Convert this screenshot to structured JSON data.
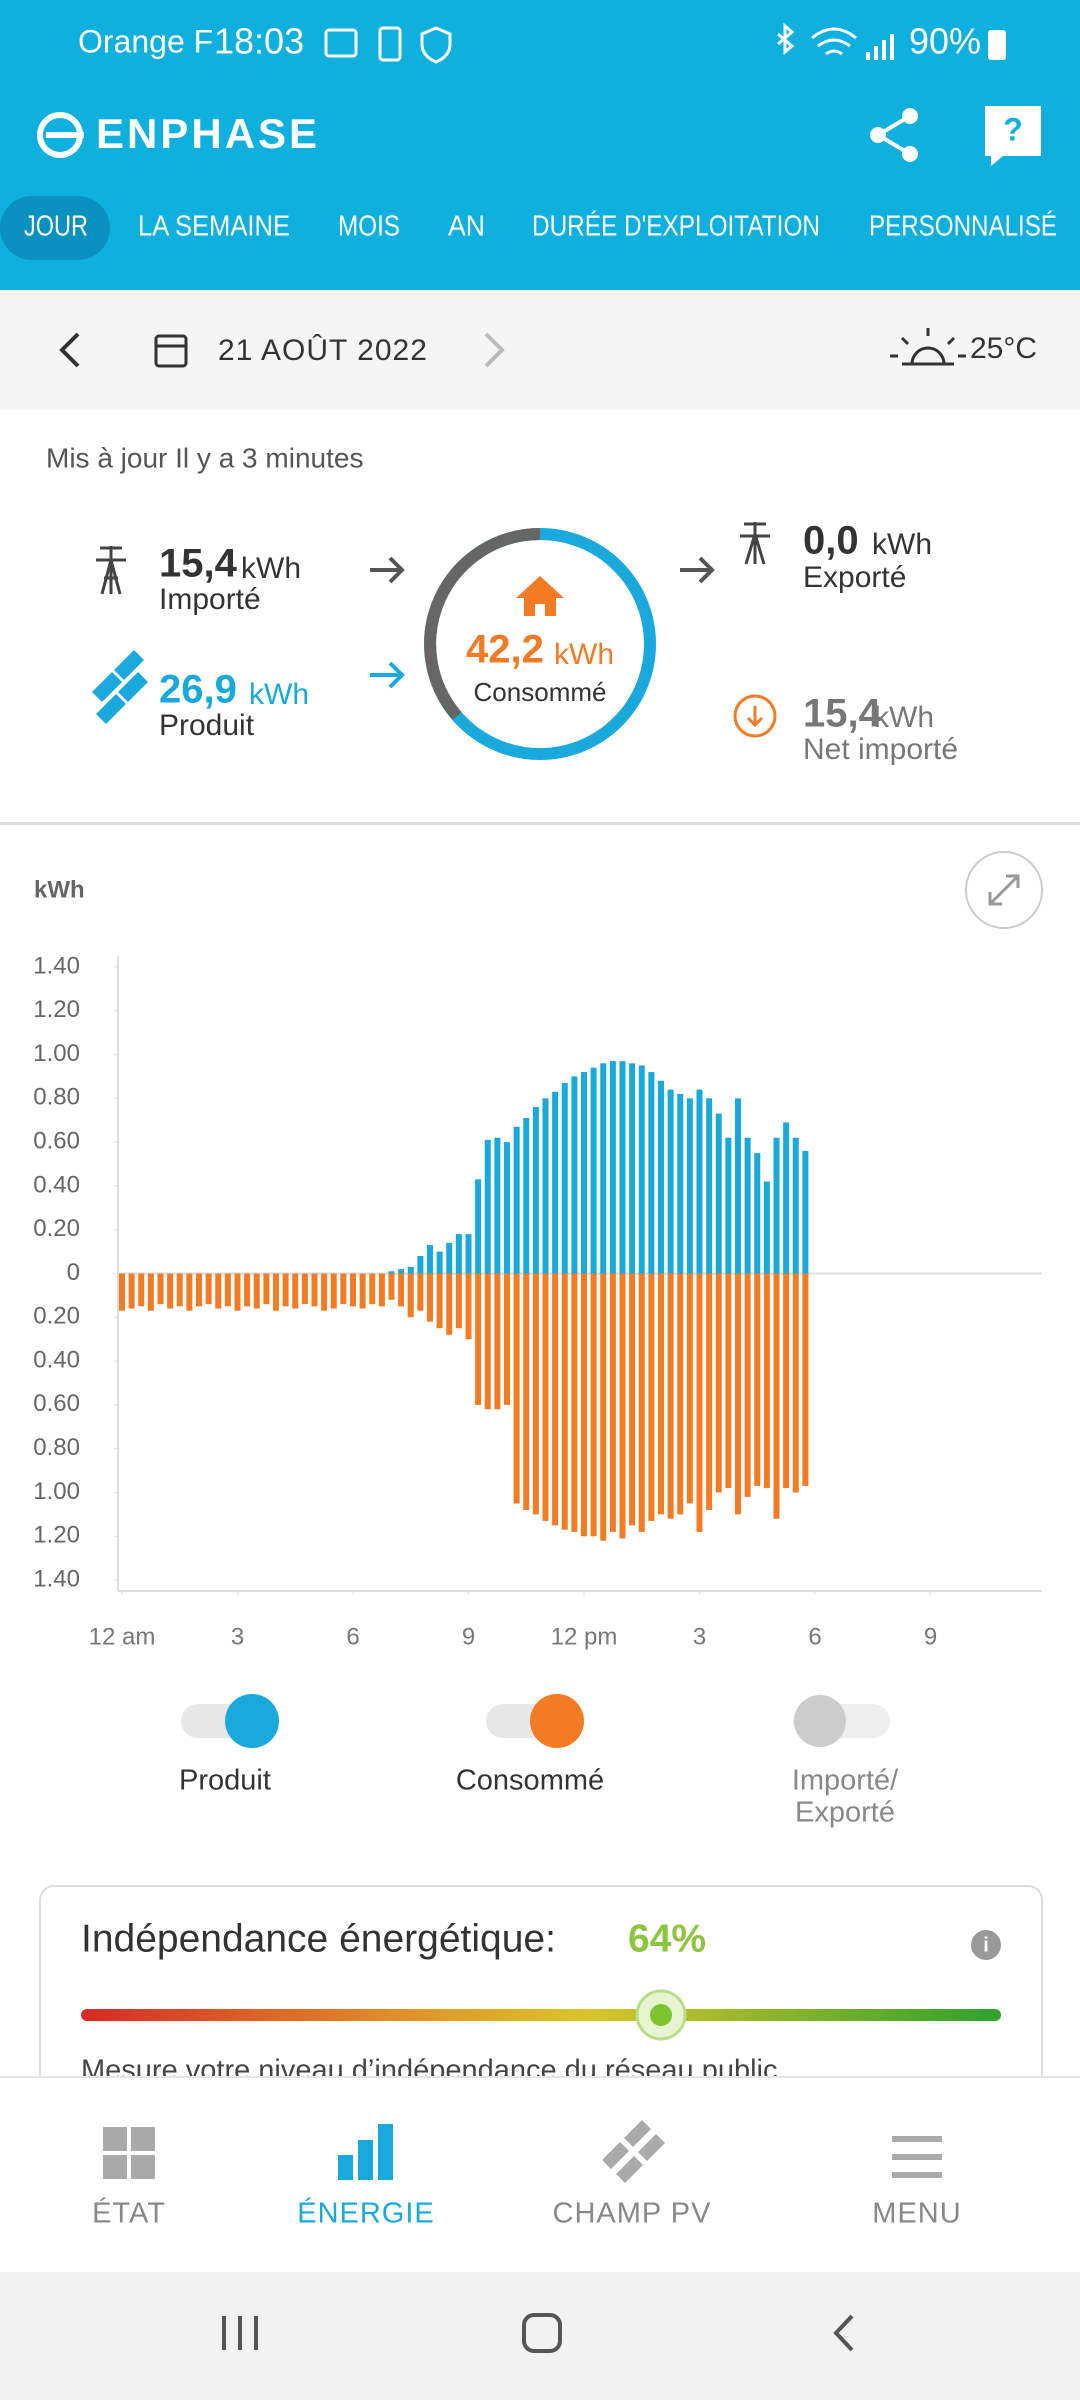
{
  "status_bar": {
    "carrier": "Orange F",
    "time": "18:03",
    "battery": "90%"
  },
  "header": {
    "brand": "ENPHASE"
  },
  "tabs": [
    "JOUR",
    "LA SEMAINE",
    "MOIS",
    "AN",
    "DURÉE D'EXPLOITATION",
    "PERSONNALISÉ"
  ],
  "date_bar": {
    "date": "21 AOÛT 2022",
    "temperature": "25°C"
  },
  "summary": {
    "updated": "Mis à jour Il y a 3 minutes",
    "imported": {
      "value": "15,4",
      "unit": "kWh",
      "label": "Importé"
    },
    "produced": {
      "value": "26,9",
      "unit": "kWh",
      "label": "Produit"
    },
    "consumed": {
      "value": "42,2",
      "unit": "kWh",
      "label": "Consommé"
    },
    "exported": {
      "value": "0,0",
      "unit": "kWh",
      "label": "Exporté"
    },
    "net_imported": {
      "value": "15,4",
      "unit": "kWh",
      "label": "Net importé"
    }
  },
  "chart_data": {
    "type": "bar",
    "y_label": "kWh",
    "x": [
      0,
      0.25,
      0.5,
      0.75,
      1,
      1.25,
      1.5,
      1.75,
      2,
      2.25,
      2.5,
      2.75,
      3,
      3.25,
      3.5,
      3.75,
      4,
      4.25,
      4.5,
      4.75,
      5,
      5.25,
      5.5,
      5.75,
      6,
      6.25,
      6.5,
      6.75,
      7,
      7.25,
      7.5,
      7.75,
      8,
      8.25,
      8.5,
      8.75,
      9,
      9.25,
      9.5,
      9.75,
      10,
      10.25,
      10.5,
      10.75,
      11,
      11.25,
      11.5,
      11.75,
      12,
      12.25,
      12.5,
      12.75,
      13,
      13.25,
      13.5,
      13.75,
      14,
      14.25,
      14.5,
      14.75,
      15,
      15.25,
      15.5,
      15.75,
      16,
      16.25,
      16.5,
      16.75,
      17,
      17.25,
      17.5,
      17.75
    ],
    "series": [
      {
        "name": "Produit",
        "color": "#19a9dc",
        "values": [
          0,
          0,
          0,
          0,
          0,
          0,
          0,
          0,
          0,
          0,
          0,
          0,
          0,
          0,
          0,
          0,
          0,
          0,
          0,
          0,
          0,
          0,
          0,
          0,
          0,
          0,
          0,
          0,
          0.01,
          0.02,
          0.03,
          0.08,
          0.13,
          0.1,
          0.14,
          0.18,
          0.18,
          0.43,
          0.61,
          0.62,
          0.6,
          0.67,
          0.71,
          0.76,
          0.8,
          0.83,
          0.87,
          0.9,
          0.92,
          0.94,
          0.96,
          0.97,
          0.97,
          0.96,
          0.95,
          0.92,
          0.88,
          0.84,
          0.82,
          0.8,
          0.84,
          0.8,
          0.73,
          0.62,
          0.8,
          0.62,
          0.55,
          0.42,
          0.62,
          0.69,
          0.62,
          0.56
        ]
      },
      {
        "name": "Consommé",
        "color": "#f37b23",
        "values": [
          -0.17,
          -0.16,
          -0.15,
          -0.17,
          -0.14,
          -0.16,
          -0.15,
          -0.17,
          -0.15,
          -0.14,
          -0.16,
          -0.15,
          -0.17,
          -0.15,
          -0.16,
          -0.14,
          -0.17,
          -0.15,
          -0.16,
          -0.14,
          -0.15,
          -0.17,
          -0.16,
          -0.14,
          -0.15,
          -0.16,
          -0.14,
          -0.15,
          -0.12,
          -0.15,
          -0.2,
          -0.17,
          -0.22,
          -0.25,
          -0.28,
          -0.25,
          -0.3,
          -0.6,
          -0.62,
          -0.62,
          -0.6,
          -1.05,
          -1.08,
          -1.1,
          -1.13,
          -1.15,
          -1.17,
          -1.18,
          -1.2,
          -1.2,
          -1.22,
          -1.18,
          -1.21,
          -1.15,
          -1.18,
          -1.13,
          -1.1,
          -1.12,
          -1.1,
          -1.05,
          -1.18,
          -1.08,
          -1.0,
          -0.98,
          -1.1,
          -1.02,
          -0.97,
          -0.98,
          -1.12,
          -0.98,
          -1.0,
          -0.97
        ]
      }
    ],
    "xlim": [
      0,
      24
    ],
    "xticks": [
      {
        "value": 0,
        "label": "12 am"
      },
      3,
      6,
      9,
      {
        "value": 12,
        "label": "12 pm"
      },
      {
        "value": 15,
        "label": "3"
      },
      {
        "value": 18,
        "label": "6"
      },
      {
        "value": 21,
        "label": "9"
      }
    ],
    "ylim": [
      -1.45,
      1.45
    ],
    "yticks": [
      {
        "value": 1.4,
        "label": "1.40"
      },
      {
        "value": 1.2,
        "label": "1.20"
      },
      {
        "value": 1.0,
        "label": "1.00"
      },
      {
        "value": 0.8,
        "label": "0.80"
      },
      {
        "value": 0.6,
        "label": "0.60"
      },
      {
        "value": 0.4,
        "label": "0.40"
      },
      {
        "value": 0.2,
        "label": "0.20"
      },
      0,
      {
        "value": -0.2,
        "label": "0.20"
      },
      {
        "value": -0.4,
        "label": "0.40"
      },
      {
        "value": -0.6,
        "label": "0.60"
      },
      {
        "value": -0.8,
        "label": "0.80"
      },
      {
        "value": -1.0,
        "label": "1.00"
      },
      {
        "value": -1.2,
        "label": "1.20"
      },
      {
        "value": -1.4,
        "label": "1.40"
      }
    ]
  },
  "toggle_off": {
    "lines": [
      "Importé/",
      "Exporté"
    ]
  },
  "independence": {
    "title": "Indépendance énergétique:",
    "value": "64%",
    "description": "Mesure votre niveau d’indépendance du réseau public"
  },
  "bottom_nav": [
    "ÉTAT",
    "ÉNERGIE",
    "CHAMP PV",
    "MENU"
  ]
}
